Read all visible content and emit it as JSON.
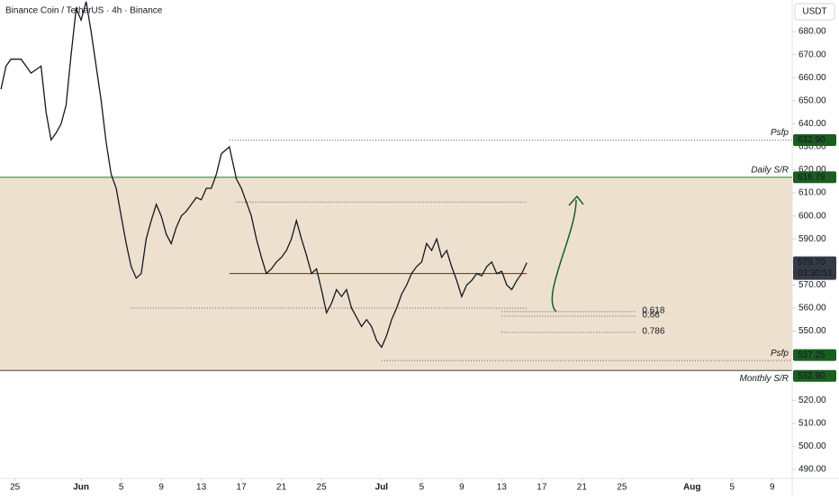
{
  "chart_data": {
    "type": "line",
    "title": "Binance Coin / TetherUS · 4h · Binance",
    "currency": "USDT",
    "x": [
      -8,
      -7.5,
      -7,
      -6,
      -5,
      -4,
      -3.5,
      -3,
      -2.5,
      -2,
      -1.5,
      -1,
      -0.5,
      0,
      0.5,
      1,
      1.5,
      2,
      2.5,
      3,
      3.5,
      4,
      4.5,
      5,
      5.5,
      6,
      6.5,
      7,
      7.5,
      8,
      8.5,
      9,
      9.5,
      10,
      10.5,
      11,
      11.5,
      12,
      12.5,
      13,
      13.5,
      14,
      14.8,
      15.5,
      16,
      16.5,
      17,
      17.5,
      18,
      18.5,
      19,
      19.5,
      20,
      20.5,
      21,
      21.5,
      22,
      22.5,
      23,
      23.5,
      24,
      24.5,
      25,
      25.5,
      26,
      26.5,
      27,
      27.5,
      28,
      28.5,
      29,
      29.5,
      30,
      30.5,
      31,
      31.5,
      32,
      32.5,
      33,
      33.5,
      34,
      34.5,
      35,
      35.5,
      36,
      36.5,
      37,
      37.5,
      38,
      38.5,
      39,
      39.5,
      40,
      40.5,
      41,
      41.5,
      42,
      42.5,
      43,
      43.5,
      44,
      44.5
    ],
    "series": [
      {
        "color": "#131722",
        "values": [
          655,
          665,
          668,
          668,
          662,
          665,
          645,
          633,
          636,
          640,
          648,
          670,
          690,
          685,
          693,
          680,
          665,
          650,
          632,
          618,
          612,
          600,
          588,
          578,
          573,
          575,
          590,
          598,
          605,
          600,
          592,
          588,
          595,
          600,
          602,
          605,
          608,
          607,
          612,
          612,
          618,
          627,
          630,
          616,
          612,
          606,
          600,
          590,
          582,
          575,
          577,
          580,
          582,
          585,
          590,
          598,
          590,
          583,
          575,
          577,
          568,
          558,
          562,
          568,
          565,
          568,
          560,
          556,
          552,
          555,
          552,
          546,
          543,
          548,
          555,
          560,
          566,
          570,
          575,
          578,
          580,
          588,
          585,
          590,
          582,
          585,
          578,
          572,
          565,
          570,
          572,
          575,
          574,
          578,
          580,
          575,
          576,
          570,
          568,
          572,
          575,
          579.7
        ]
      }
    ],
    "last_price": {
      "value": 579.7,
      "value_label": "579.70",
      "countdown": "03:30:51"
    },
    "xlim": [
      -8.1,
      71
    ],
    "ylim": [
      486.1,
      693.7
    ],
    "yticks": [
      {
        "value": 490,
        "label": "490.00"
      },
      {
        "value": 500,
        "label": "500.00"
      },
      {
        "value": 510,
        "label": "510.00"
      },
      {
        "value": 520,
        "label": "520.00"
      },
      {
        "value": 530,
        "label": "530.00"
      },
      {
        "value": 540,
        "label": "540.00"
      },
      {
        "value": 550,
        "label": "550.00"
      },
      {
        "value": 560,
        "label": "560.00"
      },
      {
        "value": 570,
        "label": "570.00"
      },
      {
        "value": 580,
        "label": "580.00"
      },
      {
        "value": 590,
        "label": "590.00"
      },
      {
        "value": 600,
        "label": "600.00"
      },
      {
        "value": 610,
        "label": "610.00"
      },
      {
        "value": 620,
        "label": "620.00"
      },
      {
        "value": 630,
        "label": "630.00"
      },
      {
        "value": 640,
        "label": "640.00"
      },
      {
        "value": 650,
        "label": "650.00"
      },
      {
        "value": 660,
        "label": "660.00"
      },
      {
        "value": 670,
        "label": "670.00"
      },
      {
        "value": 680,
        "label": "680.00"
      }
    ],
    "xticks": [
      {
        "value": -6.6,
        "label": "25"
      },
      {
        "value": 0,
        "label": "Jun"
      },
      {
        "value": 4,
        "label": "5"
      },
      {
        "value": 8,
        "label": "9"
      },
      {
        "value": 12,
        "label": "13"
      },
      {
        "value": 16,
        "label": "17"
      },
      {
        "value": 20,
        "label": "21"
      },
      {
        "value": 24,
        "label": "25"
      },
      {
        "value": 30,
        "label": "Jul"
      },
      {
        "value": 34,
        "label": "5"
      },
      {
        "value": 38,
        "label": "9"
      },
      {
        "value": 42,
        "label": "13"
      },
      {
        "value": 46,
        "label": "17"
      },
      {
        "value": 50,
        "label": "21"
      },
      {
        "value": 54,
        "label": "25"
      },
      {
        "value": 61,
        "label": "Aug"
      },
      {
        "value": 65,
        "label": "5"
      },
      {
        "value": 69,
        "label": "9"
      }
    ],
    "levels": [
      {
        "value": 632.9,
        "value_label": "632.90",
        "label": "Psfp",
        "style": "dotted",
        "from": 14.8
      },
      {
        "value": 616.79,
        "value_label": "616.79",
        "label": "Daily S/R",
        "style": "solid",
        "color": "#2e7d32",
        "from": -8.1
      },
      {
        "value": 537.25,
        "value_label": "537.25",
        "label": "Psfp",
        "style": "dotted",
        "from": 30
      },
      {
        "value": 532.9,
        "value_label": "532.90",
        "label": "Monthly S/R",
        "style": "solid",
        "color": "#37474f",
        "from": -8.1
      }
    ],
    "zone": {
      "color": "#e8d5bd"
    },
    "lines": [
      {
        "value": 606,
        "from": 15.5,
        "to": 44.5,
        "style": "dotted",
        "color": "#555"
      },
      {
        "value": 560,
        "from": 5,
        "to": 44.5,
        "style": "dotted",
        "color": "#555"
      },
      {
        "value": 575,
        "from": 14.8,
        "to": 44.5,
        "style": "solid",
        "color": "#8b1a1a"
      }
    ],
    "fib": [
      {
        "ratio": 0.618,
        "value": 558.5
      },
      {
        "ratio": 0.66,
        "value": 556.5
      },
      {
        "ratio": 0.786,
        "value": 549.5
      }
    ],
    "fib_from": 42
  }
}
